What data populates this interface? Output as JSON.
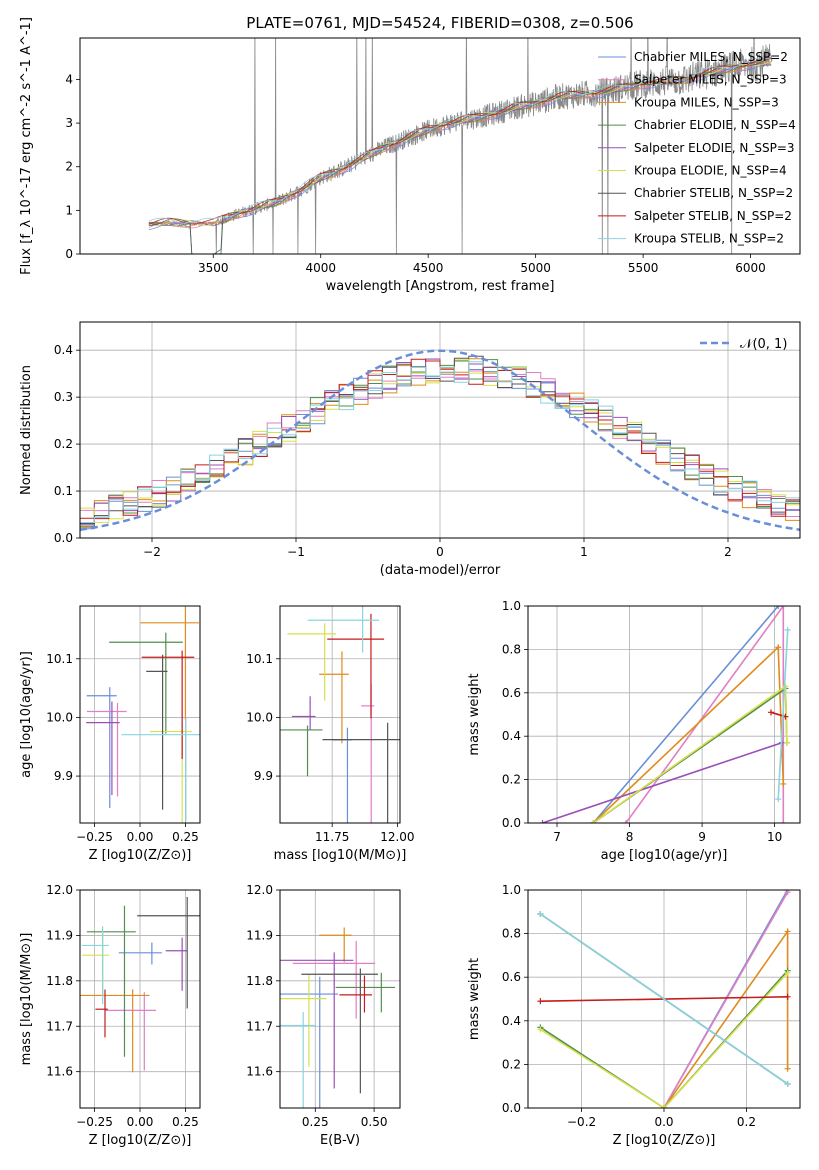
{
  "figure_title": "PLATE=0761, MJD=54524, FIBERID=0308, z=0.506",
  "colors": {
    "chabrier_miles": "#6a8fd8",
    "salpeter_miles": "#e07fc2",
    "kroupa_miles": "#e08b1d",
    "chabrier_elodie": "#4f8f4f",
    "salpeter_elodie": "#9a4fb8",
    "kroupa_elodie": "#d8e04a",
    "chabrier_stelib": "#555555",
    "salpeter_stelib": "#c41c1c",
    "kroupa_stelib": "#88d4e0",
    "data": "#888888",
    "gaussian": "#6a8fd8"
  },
  "chart_data": [
    {
      "id": "spectrum",
      "type": "line",
      "xlabel": "wavelength [Angstrom, rest frame]",
      "ylabel": "Flux [f_λ 10^-17 erg cm^-2 s^-1 A^-1]",
      "xlim": [
        2880,
        6230
      ],
      "ylim": [
        0,
        4.95
      ],
      "xticks": [
        "3500",
        "4000",
        "4500",
        "5000",
        "5500",
        "6000"
      ],
      "yticks": [
        "0",
        "1",
        "2",
        "3",
        "4"
      ],
      "grid": false,
      "legend_position": "top-right",
      "legend": [
        {
          "label": "Chabrier MILES, N_SSP=2",
          "color_key": "chabrier_miles"
        },
        {
          "label": "Salpeter MILES, N_SSP=3",
          "color_key": "salpeter_miles"
        },
        {
          "label": "Kroupa MILES, N_SSP=3",
          "color_key": "kroupa_miles"
        },
        {
          "label": "Chabrier ELODIE, N_SSP=4",
          "color_key": "chabrier_elodie"
        },
        {
          "label": "Salpeter ELODIE, N_SSP=3",
          "color_key": "salpeter_elodie"
        },
        {
          "label": "Kroupa ELODIE, N_SSP=4",
          "color_key": "kroupa_elodie"
        },
        {
          "label": "Chabrier STELIB, N_SSP=2",
          "color_key": "chabrier_stelib"
        },
        {
          "label": "Salpeter STELIB, N_SSP=2",
          "color_key": "salpeter_stelib"
        },
        {
          "label": "Kroupa STELIB, N_SSP=2",
          "color_key": "kroupa_stelib"
        }
      ],
      "continuum": [
        [
          3200,
          0.68
        ],
        [
          3300,
          0.72
        ],
        [
          3400,
          0.7
        ],
        [
          3500,
          0.7
        ],
        [
          3600,
          0.9
        ],
        [
          3700,
          1.05
        ],
        [
          3800,
          1.2
        ],
        [
          3900,
          1.45
        ],
        [
          4000,
          1.75
        ],
        [
          4100,
          1.95
        ],
        [
          4200,
          2.2
        ],
        [
          4300,
          2.45
        ],
        [
          4400,
          2.65
        ],
        [
          4500,
          2.85
        ],
        [
          4600,
          3.0
        ],
        [
          4700,
          3.1
        ],
        [
          4800,
          3.2
        ],
        [
          4900,
          3.35
        ],
        [
          5000,
          3.45
        ],
        [
          5100,
          3.6
        ],
        [
          5200,
          3.65
        ],
        [
          5300,
          3.7
        ],
        [
          5400,
          3.8
        ],
        [
          5500,
          3.9
        ],
        [
          5600,
          3.95
        ],
        [
          5700,
          4.0
        ],
        [
          5800,
          4.15
        ],
        [
          5900,
          4.25
        ],
        [
          6000,
          4.35
        ],
        [
          6100,
          4.4
        ]
      ]
    },
    {
      "id": "residuals",
      "type": "line",
      "xlabel": "(data-model)/error",
      "ylabel": "Normed distribution",
      "xlim": [
        -2.5,
        2.5
      ],
      "ylim": [
        0,
        0.46
      ],
      "xticks": [
        "−2",
        "−1",
        "0",
        "1",
        "2"
      ],
      "yticks": [
        "0.0",
        "0.1",
        "0.2",
        "0.3",
        "0.4"
      ],
      "grid": true,
      "legend_position": "top-right",
      "legend": [
        {
          "label": "𝒩(0, 1)",
          "style": "dashed"
        }
      ],
      "gaussian": {
        "mean": 0,
        "sigma": 1
      }
    },
    {
      "id": "age_vs_Z",
      "type": "scatter",
      "xlabel": "Z [log10(Z/Z⊙)]",
      "ylabel": "age [log10(age/yr)]",
      "xlim": [
        -0.33,
        0.33
      ],
      "ylim": [
        9.82,
        10.19
      ],
      "xticks": [
        "−0.25",
        "0.00",
        "0.25"
      ],
      "yticks": [
        "9.9",
        "10.0",
        "10.1"
      ],
      "grid": true
    },
    {
      "id": "age_vs_mass",
      "type": "scatter",
      "xlabel": "mass [log10(M/M⊙)]",
      "ylabel": "",
      "xlim": [
        11.55,
        12.01
      ],
      "ylim": [
        9.82,
        10.19
      ],
      "xticks": [
        "11.75",
        "12.00"
      ],
      "yticks": [
        "9.9",
        "10.0",
        "10.1"
      ],
      "grid": true
    },
    {
      "id": "weight_vs_age",
      "type": "line",
      "xlabel": "age [log10(age/yr)]",
      "ylabel": "mass weight",
      "xlim": [
        6.6,
        10.35
      ],
      "ylim": [
        0,
        1
      ],
      "xticks": [
        "7",
        "8",
        "9",
        "10"
      ],
      "yticks": [
        "0.0",
        "0.2",
        "0.4",
        "0.6",
        "0.8",
        "1.0"
      ],
      "grid": true,
      "series": [
        {
          "color_key": "chabrier_miles",
          "points": [
            [
              7.5,
              0.0
            ],
            [
              10.05,
              1.0
            ]
          ]
        },
        {
          "color_key": "salpeter_miles",
          "points": [
            [
              7.95,
              0.0
            ],
            [
              10.12,
              1.0
            ],
            [
              10.12,
              0.0
            ]
          ]
        },
        {
          "color_key": "kroupa_miles",
          "points": [
            [
              7.5,
              0.0
            ],
            [
              10.05,
              0.81
            ],
            [
              10.12,
              0.18
            ]
          ]
        },
        {
          "color_key": "chabrier_elodie",
          "points": [
            [
              7.5,
              0.0
            ],
            [
              10.15,
              0.62
            ],
            [
              10.17,
              0.37
            ]
          ]
        },
        {
          "color_key": "salpeter_elodie",
          "points": [
            [
              6.8,
              0.0
            ],
            [
              10.1,
              0.37
            ]
          ]
        },
        {
          "color_key": "kroupa_elodie",
          "points": [
            [
              7.5,
              0.0
            ],
            [
              10.15,
              0.63
            ],
            [
              10.17,
              0.37
            ]
          ]
        },
        {
          "color_key": "salpeter_stelib",
          "points": [
            [
              9.95,
              0.51
            ],
            [
              10.15,
              0.49
            ]
          ]
        },
        {
          "color_key": "kroupa_stelib",
          "points": [
            [
              10.05,
              0.11
            ],
            [
              10.18,
              0.89
            ]
          ]
        }
      ]
    },
    {
      "id": "mass_vs_Z",
      "type": "scatter",
      "xlabel": "Z [log10(Z/Z⊙)]",
      "ylabel": "mass [log10(M/M⊙)]",
      "xlim": [
        -0.33,
        0.33
      ],
      "ylim": [
        11.52,
        12.0
      ],
      "xticks": [
        "−0.25",
        "0.00",
        "0.25"
      ],
      "yticks": [
        "11.6",
        "11.7",
        "11.8",
        "11.9",
        "12.0"
      ],
      "grid": true
    },
    {
      "id": "mass_vs_ebv",
      "type": "scatter",
      "xlabel": "E(B-V)",
      "ylabel": "",
      "xlim": [
        0.1,
        0.61
      ],
      "ylim": [
        11.52,
        12.0
      ],
      "xticks": [
        "0.25",
        "0.50"
      ],
      "yticks": [
        "11.6",
        "11.7",
        "11.8",
        "11.9",
        "12.0"
      ],
      "grid": true
    },
    {
      "id": "weight_vs_Z",
      "type": "line",
      "xlabel": "Z [log10(Z/Z⊙)]",
      "ylabel": "mass weight",
      "xlim": [
        -0.33,
        0.33
      ],
      "ylim": [
        0,
        1
      ],
      "xticks": [
        "−0.2",
        "0.0",
        "0.2"
      ],
      "yticks": [
        "0.0",
        "0.2",
        "0.4",
        "0.6",
        "0.8",
        "1.0"
      ],
      "grid": true,
      "series": [
        {
          "color_key": "chabrier_miles",
          "points": [
            [
              0.0,
              0.0
            ],
            [
              0.3,
              1.0
            ]
          ]
        },
        {
          "color_key": "salpeter_miles",
          "points": [
            [
              0.0,
              0.0
            ],
            [
              0.3,
              0.99
            ]
          ]
        },
        {
          "color_key": "kroupa_miles",
          "points": [
            [
              0.0,
              0.0
            ],
            [
              0.3,
              0.81
            ],
            [
              0.3,
              0.18
            ]
          ]
        },
        {
          "color_key": "chabrier_elodie",
          "points": [
            [
              -0.3,
              0.37
            ],
            [
              0.0,
              0.0
            ],
            [
              0.3,
              0.63
            ]
          ]
        },
        {
          "color_key": "kroupa_elodie",
          "points": [
            [
              -0.3,
              0.36
            ],
            [
              0.0,
              0.0
            ],
            [
              0.3,
              0.62
            ]
          ]
        },
        {
          "color_key": "salpeter_stelib",
          "points": [
            [
              -0.3,
              0.49
            ],
            [
              0.3,
              0.51
            ]
          ]
        },
        {
          "color_key": "chabrier_stelib",
          "points": [
            [
              -0.3,
              0.89
            ],
            [
              0.3,
              0.11
            ]
          ]
        },
        {
          "color_key": "kroupa_stelib",
          "points": [
            [
              -0.3,
              0.89
            ],
            [
              0.3,
              0.11
            ]
          ]
        }
      ]
    }
  ]
}
